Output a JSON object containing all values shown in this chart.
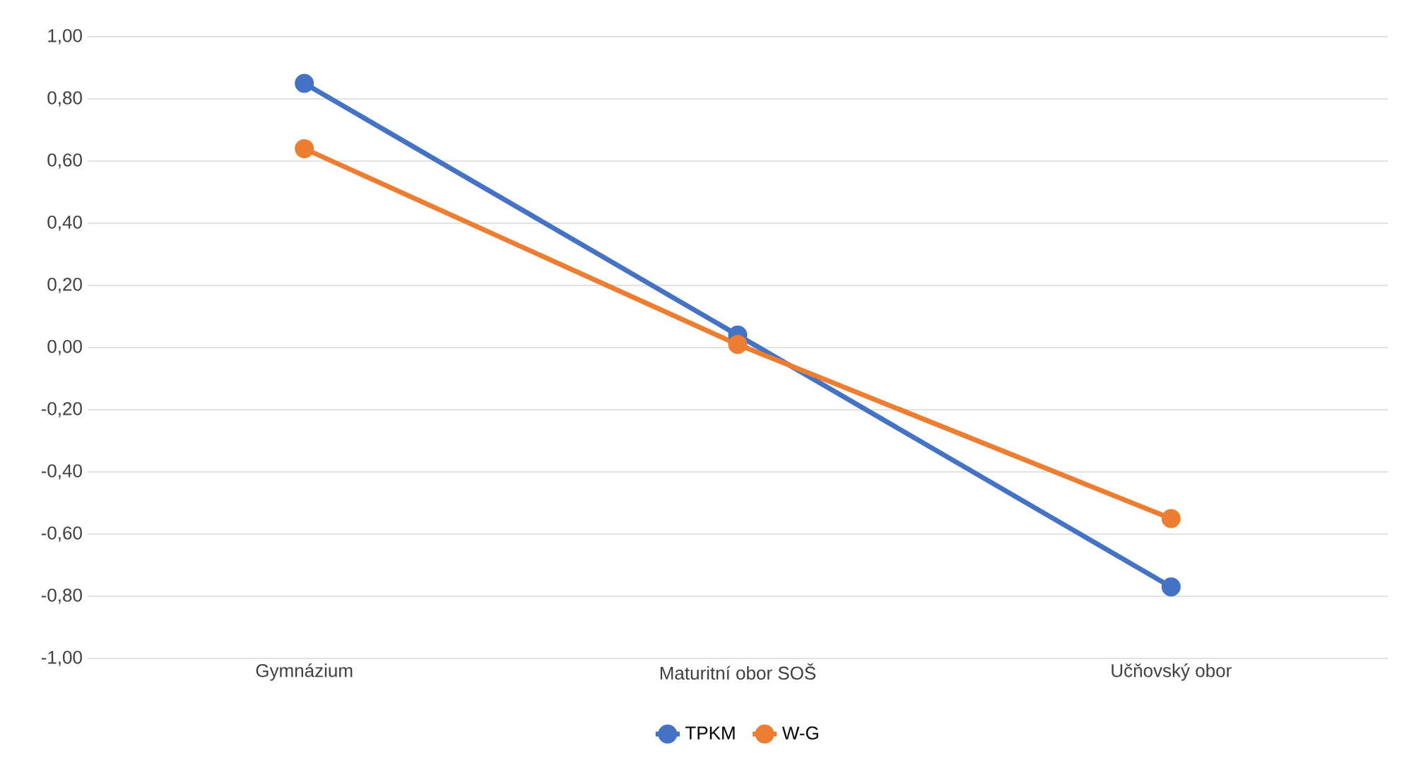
{
  "chart_data": {
    "type": "line",
    "categories": [
      "Gymnázium",
      "Maturitní obor SOŠ",
      "Učňovský obor"
    ],
    "series": [
      {
        "name": "TPKM",
        "color": "#4472c4",
        "values": [
          0.85,
          0.04,
          -0.77
        ]
      },
      {
        "name": "W-G",
        "color": "#ed7d31",
        "values": [
          0.64,
          0.01,
          -0.55
        ]
      }
    ],
    "ylim": [
      -1,
      1
    ],
    "yticks": [
      {
        "value": -1,
        "label": "-1,00"
      },
      {
        "value": -0.8,
        "label": "-0,80"
      },
      {
        "value": -0.6,
        "label": "-0,60"
      },
      {
        "value": -0.4,
        "label": "-0,40"
      },
      {
        "value": -0.2,
        "label": "-0,20"
      },
      {
        "value": 0,
        "label": "0,00"
      },
      {
        "value": 0.2,
        "label": "0,20"
      },
      {
        "value": 0.4,
        "label": "0,40"
      },
      {
        "value": 0.6,
        "label": "0,60"
      },
      {
        "value": 0.8,
        "label": "0,80"
      },
      {
        "value": 1,
        "label": "1,00"
      }
    ],
    "grid": "y",
    "legend": "bottom",
    "marker": "circle",
    "line_style": "solid"
  }
}
